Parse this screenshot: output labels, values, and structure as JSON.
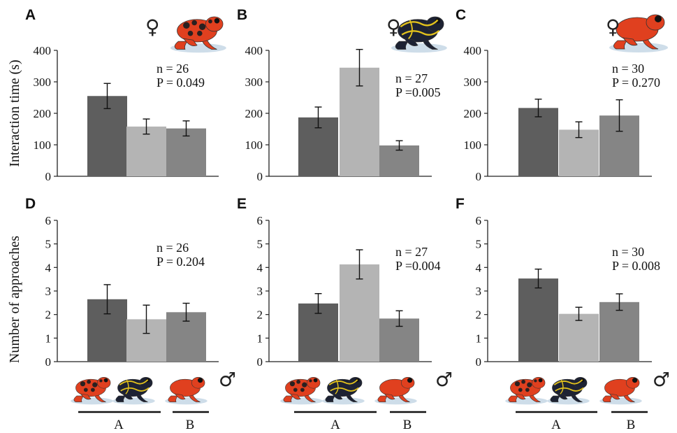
{
  "figure": {
    "ylabel_top": "Interaction time (s)",
    "ylabel_bottom": "Number of approaches",
    "female_symbol": "♀",
    "male_symbol": "♂",
    "group_labels": [
      "A",
      "B"
    ]
  },
  "colors": {
    "bar_dark": "#5e5e5e",
    "bar_light": "#b4b4b4",
    "bar_mid": "#858585",
    "frog_red": "#e0401f",
    "frog_yellow": "#e3c21c",
    "frog_dark": "#1d2233",
    "shadow": "#b9cfdf"
  },
  "chart_data": [
    {
      "panel": "A",
      "type": "bar",
      "ylim": [
        0,
        400
      ],
      "yticks": [
        0,
        100,
        200,
        300,
        400
      ],
      "values": [
        255,
        158,
        152
      ],
      "errors": [
        40,
        24,
        24
      ],
      "n_text": "n = 26",
      "p_text": "P = 0.049"
    },
    {
      "panel": "B",
      "type": "bar",
      "ylim": [
        0,
        400
      ],
      "yticks": [
        0,
        100,
        200,
        300,
        400
      ],
      "values": [
        187,
        345,
        98
      ],
      "errors": [
        33,
        58,
        15
      ],
      "n_text": "n = 27",
      "p_text": "P =0.005"
    },
    {
      "panel": "C",
      "type": "bar",
      "ylim": [
        0,
        400
      ],
      "yticks": [
        0,
        100,
        200,
        300,
        400
      ],
      "values": [
        217,
        148,
        193
      ],
      "errors": [
        28,
        25,
        50
      ],
      "n_text": "n = 30",
      "p_text": "P = 0.270"
    },
    {
      "panel": "D",
      "type": "bar",
      "ylim": [
        0,
        6
      ],
      "yticks": [
        0,
        1,
        2,
        3,
        4,
        5,
        6
      ],
      "values": [
        2.65,
        1.8,
        2.1
      ],
      "errors": [
        0.62,
        0.6,
        0.38
      ],
      "n_text": "n = 26",
      "p_text": "P = 0.204"
    },
    {
      "panel": "E",
      "type": "bar",
      "ylim": [
        0,
        6
      ],
      "yticks": [
        0,
        1,
        2,
        3,
        4,
        5,
        6
      ],
      "values": [
        2.47,
        4.13,
        1.83
      ],
      "errors": [
        0.42,
        0.62,
        0.33
      ],
      "n_text": "n = 27",
      "p_text": "P =0.004"
    },
    {
      "panel": "F",
      "type": "bar",
      "ylim": [
        0,
        6
      ],
      "yticks": [
        0,
        1,
        2,
        3,
        4,
        5,
        6
      ],
      "values": [
        3.53,
        2.03,
        2.53
      ],
      "errors": [
        0.4,
        0.28,
        0.35
      ],
      "n_text": "n = 30",
      "p_text": "P = 0.008"
    }
  ]
}
